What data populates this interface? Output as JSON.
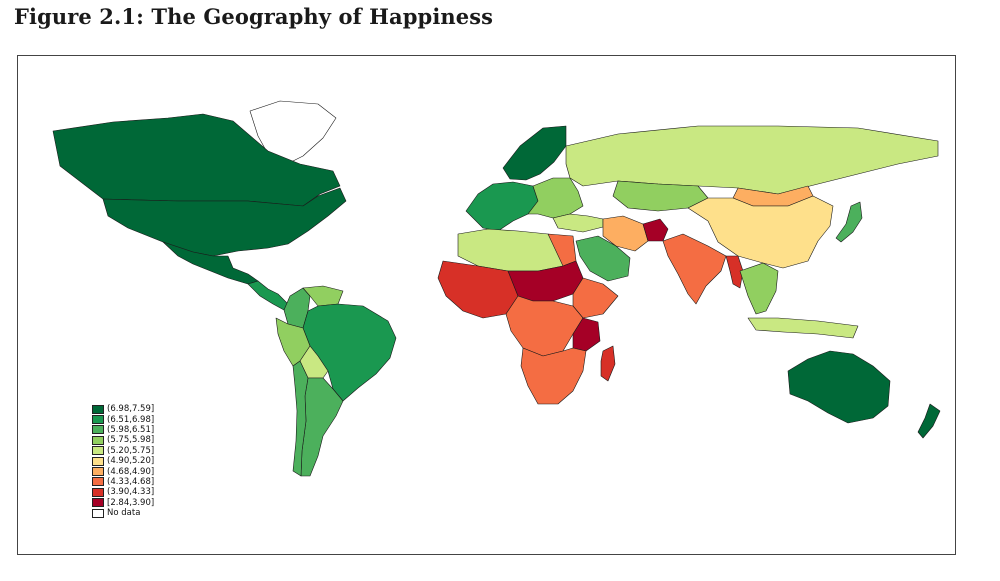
{
  "figure": {
    "title": "Figure 2.1: The Geography of Happiness"
  },
  "legend": {
    "items": [
      {
        "label": "(6.98,7.59]",
        "color": "#006837"
      },
      {
        "label": "(6.51,6.98]",
        "color": "#1a9850"
      },
      {
        "label": "(5.98,6.51]",
        "color": "#4cb05c"
      },
      {
        "label": "(5.75,5.98]",
        "color": "#91cf60"
      },
      {
        "label": "(5.20,5.75]",
        "color": "#c9e882"
      },
      {
        "label": "(4.90,5.20]",
        "color": "#fee08b"
      },
      {
        "label": "(4.68,4.90]",
        "color": "#fdae61"
      },
      {
        "label": "(4.33,4.68]",
        "color": "#f46d43"
      },
      {
        "label": "(3.90,4.33]",
        "color": "#d73027"
      },
      {
        "label": "[2.84,3.90]",
        "color": "#a50026"
      },
      {
        "label": "No data",
        "color": "#ffffff"
      }
    ]
  },
  "map": {
    "regions": [
      {
        "name": "Greenland",
        "color": "#ffffff"
      },
      {
        "name": "Canada",
        "color": "#006837"
      },
      {
        "name": "United States",
        "color": "#006837"
      },
      {
        "name": "Mexico",
        "color": "#006837"
      },
      {
        "name": "Central America",
        "color": "#1a9850"
      },
      {
        "name": "Colombia",
        "color": "#4cb05c"
      },
      {
        "name": "Venezuela",
        "color": "#91cf60"
      },
      {
        "name": "Brazil",
        "color": "#1a9850"
      },
      {
        "name": "Peru",
        "color": "#91cf60"
      },
      {
        "name": "Bolivia",
        "color": "#c9e882"
      },
      {
        "name": "Argentina",
        "color": "#4cb05c"
      },
      {
        "name": "Chile",
        "color": "#4cb05c"
      },
      {
        "name": "Scandinavia",
        "color": "#006837"
      },
      {
        "name": "Western Europe",
        "color": "#1a9850"
      },
      {
        "name": "Eastern Europe",
        "color": "#91cf60"
      },
      {
        "name": "Russia",
        "color": "#c9e882"
      },
      {
        "name": "Kazakhstan",
        "color": "#91cf60"
      },
      {
        "name": "Mongolia",
        "color": "#fdae61"
      },
      {
        "name": "China",
        "color": "#fee08b"
      },
      {
        "name": "Japan",
        "color": "#4cb05c"
      },
      {
        "name": "Turkey",
        "color": "#c9e882"
      },
      {
        "name": "Saudi Arabia",
        "color": "#4cb05c"
      },
      {
        "name": "Iran",
        "color": "#fdae61"
      },
      {
        "name": "Afghanistan",
        "color": "#a50026"
      },
      {
        "name": "India",
        "color": "#f46d43"
      },
      {
        "name": "Myanmar",
        "color": "#d73027"
      },
      {
        "name": "Southeast Asia",
        "color": "#91cf60"
      },
      {
        "name": "Indonesia",
        "color": "#c9e882"
      },
      {
        "name": "North Africa",
        "color": "#c9e882"
      },
      {
        "name": "Egypt",
        "color": "#f46d43"
      },
      {
        "name": "West Africa",
        "color": "#d73027"
      },
      {
        "name": "Sahel",
        "color": "#a50026"
      },
      {
        "name": "Ethiopia",
        "color": "#f46d43"
      },
      {
        "name": "Central Africa",
        "color": "#f46d43"
      },
      {
        "name": "Tanzania",
        "color": "#a50026"
      },
      {
        "name": "Southern Africa",
        "color": "#f46d43"
      },
      {
        "name": "Madagascar",
        "color": "#d73027"
      },
      {
        "name": "Australia",
        "color": "#006837"
      },
      {
        "name": "New Zealand",
        "color": "#006837"
      }
    ]
  }
}
